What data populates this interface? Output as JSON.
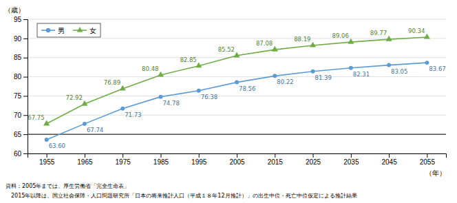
{
  "chart_data": {
    "type": "line",
    "x": [
      1955,
      1965,
      1975,
      1985,
      1995,
      2005,
      2015,
      2025,
      2035,
      2045,
      2055
    ],
    "series": [
      {
        "name": "男",
        "color": "#5b9bd5",
        "marker": "circle",
        "values": [
          63.6,
          67.74,
          71.73,
          74.78,
          76.38,
          78.56,
          80.22,
          81.39,
          82.31,
          83.05,
          83.67
        ],
        "value_labels": [
          "63.60",
          "67.74",
          "71.73",
          "74.78",
          "76.38",
          "78.56",
          "80.22",
          "81.39",
          "82.31",
          "83.05",
          "83.67"
        ]
      },
      {
        "name": "女",
        "color": "#70ad47",
        "marker": "triangle",
        "values": [
          67.75,
          72.92,
          76.89,
          80.48,
          82.85,
          85.52,
          87.08,
          88.19,
          89.06,
          89.77,
          90.34
        ],
        "value_labels": [
          "67.75",
          "72.92",
          "76.89",
          "80.48",
          "82.85",
          "85.52",
          "87.08",
          "88.19",
          "89.06",
          "89.77",
          "90.34"
        ]
      }
    ],
    "x_label": "（年）",
    "y_label": "（歳）",
    "xlim": [
      1950,
      2060
    ],
    "xticks": [
      1955,
      1965,
      1975,
      1985,
      1995,
      2005,
      2015,
      2025,
      2035,
      2045,
      2055
    ],
    "ylim": [
      60,
      95
    ],
    "yticks": [
      60,
      65,
      70,
      75,
      80,
      85,
      90,
      95
    ],
    "hlines": [
      65
    ],
    "grid": true,
    "legend": "upper left",
    "data_labels": true,
    "annotations": [
      "資料：2005年までは、厚生労働省「完全生命表」",
      "　2015年以降は、国立社会保障・人口問題研究所「日本の将来推計人口（平成１８年12月推計）」の出生中位・死亡中位仮定による推計結果"
    ]
  }
}
